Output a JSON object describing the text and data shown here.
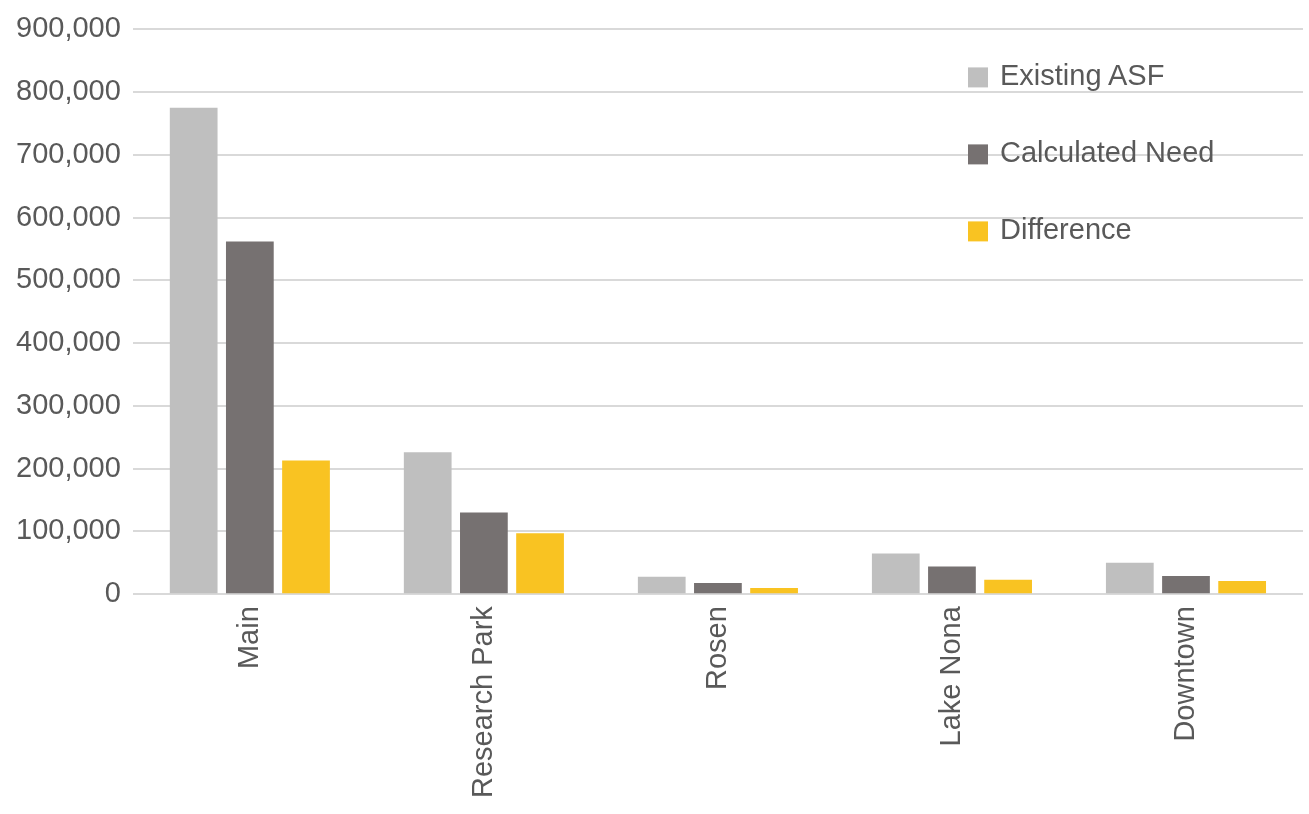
{
  "chart_data": {
    "type": "bar",
    "categories": [
      "Main",
      "Research Park",
      "Rosen",
      "Lake Nona",
      "Downtown"
    ],
    "series": [
      {
        "name": "Existing ASF",
        "color": "#bfbfbf",
        "values": [
          775000,
          226000,
          28000,
          65000,
          50000
        ]
      },
      {
        "name": "Calculated Need",
        "color": "#767171",
        "values": [
          562000,
          130000,
          18000,
          44000,
          29000
        ]
      },
      {
        "name": "Difference",
        "color": "#f9c322",
        "values": [
          213000,
          97000,
          10000,
          23000,
          21000
        ]
      }
    ],
    "ylim": [
      0,
      900000
    ],
    "yticks": [
      0,
      {
        "value": 100000,
        "label": "100,000"
      },
      {
        "value": 200000,
        "label": "200,000"
      },
      {
        "value": 300000,
        "label": "300,000"
      },
      {
        "value": 400000,
        "label": "400,000"
      },
      {
        "value": 500000,
        "label": "500,000"
      },
      {
        "value": 600000,
        "label": "600,000"
      },
      {
        "value": 700000,
        "label": "700,000"
      },
      {
        "value": 800000,
        "label": "800,000"
      },
      {
        "value": 900000,
        "label": "900,000"
      }
    ],
    "grid": "y",
    "legend": "top right"
  }
}
